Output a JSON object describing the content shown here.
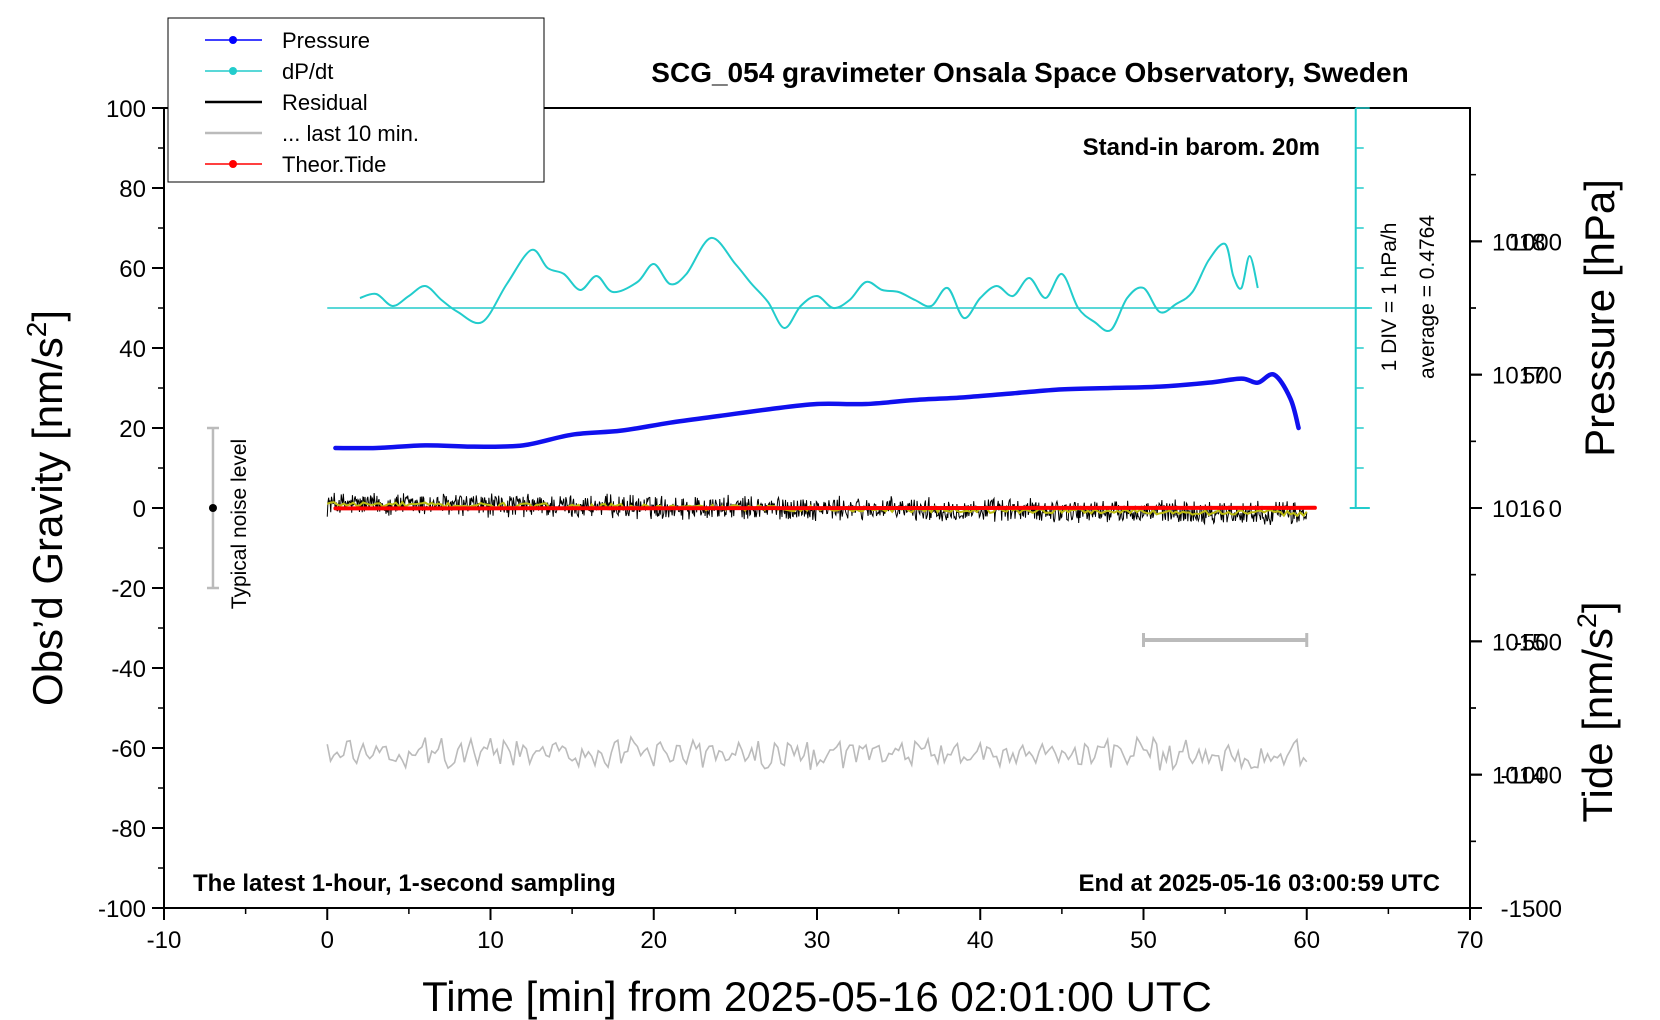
{
  "chart_data": {
    "type": "line",
    "title": "SCG_054 gravimeter Onsala Space Observatory, Sweden",
    "xlabel": "Time [min] from 2025-05-16 02:01:00 UTC",
    "ylabel_left": "Obs’d Gravity [nm/s",
    "ylabel_left_sup": "2",
    "ylabel_left_close": "]",
    "ylabel_right_top": "Pressure [hPa]",
    "ylabel_right_bottom": "Tide [nm/s",
    "ylabel_right_bottom_sup": "2",
    "ylabel_right_bottom_close": "]",
    "xlim": [
      -10,
      70
    ],
    "ylim_left": [
      -100,
      100
    ],
    "pressure_axis_range": [
      1013,
      1019
    ],
    "tide_axis_range": [
      -1500,
      1500
    ],
    "x_ticks": [
      "-10",
      "0",
      "10",
      "20",
      "30",
      "40",
      "50",
      "60",
      "70"
    ],
    "y_ticks_left": [
      "100",
      "80",
      "60",
      "40",
      "20",
      "0",
      "-20",
      "-40",
      "-60",
      "-80",
      "-100"
    ],
    "pressure_ticks": [
      "1018",
      "1017",
      "1016",
      "1015",
      "1014"
    ],
    "tide_ticks": [
      "1000",
      "500",
      "0",
      "-500",
      "-1000",
      "-1500"
    ],
    "legend": [
      {
        "label": "Pressure",
        "color": "#0000ff",
        "marker": "dot"
      },
      {
        "label": "dP/dt",
        "color": "#22cccc",
        "marker": "dot"
      },
      {
        "label": "Residual",
        "color": "#000000",
        "marker": "line"
      },
      {
        "label": "... last 10 min.",
        "color": "#bbbbbb",
        "marker": "line"
      },
      {
        "label": "Theor.Tide",
        "color": "#ff0000",
        "marker": "dot"
      }
    ],
    "annotations": {
      "barometer_note": "Stand-in barom. 20m",
      "dpdt_scale": "1 DIV = 1 hPa/h",
      "dpdt_average": "average = 0.4764",
      "noise_label": "Typical noise level",
      "bottom_left_note": "The latest 1-hour, 1-second sampling",
      "bottom_right_note": "End at 2025-05-16 03:00:59 UTC"
    },
    "noise_bar": {
      "x": -7,
      "range": [
        -20,
        20
      ]
    },
    "last_10min_bar": {
      "x_range": [
        50,
        60
      ],
      "y": -33
    },
    "series": [
      {
        "name": "Pressure",
        "unit": "hPa",
        "color": "#1010ee",
        "x": [
          0.5,
          3,
          6,
          9,
          12,
          15,
          18,
          21,
          24,
          27,
          30,
          33,
          36,
          39,
          42,
          45,
          48,
          51,
          54,
          56,
          57,
          58,
          59,
          59.5
        ],
        "values": [
          1016.45,
          1016.45,
          1016.47,
          1016.46,
          1016.47,
          1016.55,
          1016.58,
          1016.64,
          1016.69,
          1016.74,
          1016.78,
          1016.78,
          1016.81,
          1016.83,
          1016.86,
          1016.89,
          1016.9,
          1016.91,
          1016.94,
          1016.97,
          1016.94,
          1017.0,
          1016.82,
          1016.6
        ]
      },
      {
        "name": "dP/dt",
        "unit": "DIV about baseline",
        "color": "#22cccc",
        "baseline_value": 50,
        "x": [
          2,
          3,
          4,
          5,
          6,
          7,
          8,
          9.5,
          11,
          12.5,
          13.5,
          14.5,
          15.5,
          16.5,
          17.5,
          19,
          20,
          21,
          22,
          23.5,
          25,
          26,
          27,
          28,
          29,
          30,
          31,
          32,
          33,
          34,
          35,
          36,
          37,
          38,
          39,
          40,
          41,
          42,
          43,
          44,
          45,
          46,
          47,
          48,
          49,
          50,
          51,
          52,
          53,
          54,
          55,
          55.5,
          56,
          56.5,
          57
        ],
        "values": [
          52.5,
          53.5,
          50.5,
          53,
          55.5,
          52,
          49,
          46.5,
          56,
          64.5,
          60,
          58.5,
          54.5,
          58,
          54,
          56.5,
          61,
          56,
          58.5,
          67.5,
          61,
          56,
          51.5,
          45,
          50.5,
          53,
          50,
          52,
          56.5,
          54.5,
          54,
          52,
          50.5,
          55,
          47.5,
          52.5,
          55.5,
          53,
          57.5,
          52.5,
          58.5,
          50,
          46.5,
          44.5,
          52.5,
          55,
          49,
          51,
          54,
          62,
          66,
          58,
          55,
          63,
          55
        ]
      },
      {
        "name": "Residual",
        "unit": "nm/s2",
        "color": "#000000",
        "x_range": [
          0,
          60
        ],
        "trend": [
          1.0,
          -1.3
        ],
        "noise_amplitude": 2.6
      },
      {
        "name": "Residual (smoothed)",
        "unit": "nm/s2",
        "color": "#bbbb11",
        "x_range": [
          0,
          60
        ],
        "trend": [
          1.0,
          -1.3
        ]
      },
      {
        "name": "... last 10 min.",
        "unit": "nm/s2 (stretched over 0-60 min)",
        "color": "#bbbbbb",
        "x_range": [
          0,
          60
        ],
        "center": -61.5,
        "noise_amplitude": 3.2
      },
      {
        "name": "Theor.Tide",
        "unit": "nm/s2",
        "color": "#ff0000",
        "x": [
          0.5,
          10,
          20,
          30,
          40,
          50,
          59,
          60.5
        ],
        "values": [
          -1.5,
          -1.2,
          -0.8,
          -0.3,
          0.2,
          0.5,
          0.6,
          0.7
        ]
      }
    ]
  }
}
